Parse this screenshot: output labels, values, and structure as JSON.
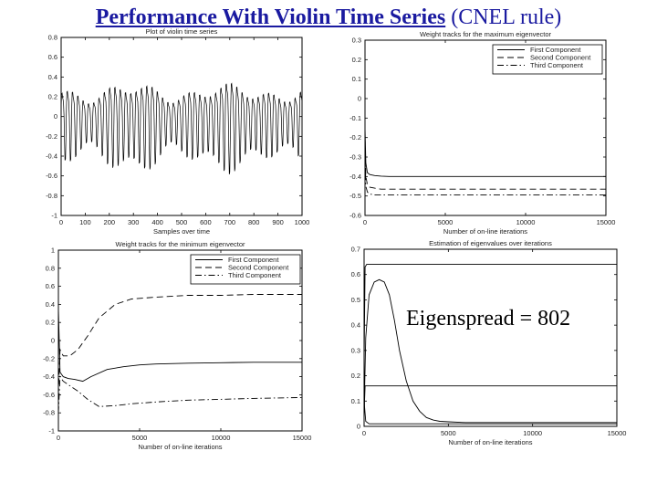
{
  "slide": {
    "title_bold": "Performance With Violin Time Series",
    "title_rest": " (CNEL rule)",
    "annotation": "Eigenspread = 802"
  },
  "chart_data": [
    {
      "type": "line",
      "title": "Plot of violin time series",
      "xlabel": "Samples over time",
      "ylabel": "",
      "xlim": [
        0,
        1000
      ],
      "ylim": [
        -1,
        0.8
      ],
      "xticks": [
        0,
        100,
        200,
        300,
        400,
        500,
        600,
        700,
        800,
        900,
        1000
      ],
      "yticks": [
        -1,
        -0.8,
        -0.6,
        -0.4,
        -0.2,
        0,
        0.2,
        0.4,
        0.6,
        0.8
      ],
      "xtick_labels": [
        "0",
        "100",
        "200",
        "300",
        "400",
        "500",
        "600",
        "700",
        "800",
        "900",
        "1000"
      ],
      "ytick_labels": [
        "-1",
        "-0.8",
        "-0.6",
        "-0.4",
        "-0.2",
        "0",
        "0.2",
        "0.4",
        "0.6",
        "0.8"
      ],
      "series": [
        {
          "values_note": "",
          "approx_period_samples": 22,
          "approx_amplitude": 0.6,
          "approx_offset": -0.02
        }
      ],
      "legend": []
    },
    {
      "type": "line",
      "title": "Weight tracks for the maximum eigenvector",
      "xlabel": "Number of on-line iterations",
      "ylabel": "",
      "xlim": [
        0,
        15000
      ],
      "ylim": [
        -0.6,
        0.3
      ],
      "xticks": [
        0,
        5000,
        10000,
        15000
      ],
      "yticks": [
        -0.6,
        -0.5,
        -0.4,
        -0.3,
        -0.2,
        -0.1,
        0,
        0.1,
        0.2,
        0.3
      ],
      "xtick_labels": [
        "0",
        "5000",
        "10000",
        "15000"
      ],
      "ytick_labels": [
        "-0.6",
        "-0.5",
        "-0.4",
        "-0.3",
        "-0.2",
        "-0.1",
        "0",
        "0.1",
        "0.2",
        "0.3"
      ],
      "legend_position": "top-right",
      "series": [
        {
          "name": "First Component",
          "style": "solid",
          "x": [
            0,
            50,
            150,
            300,
            600,
            1000,
            1500,
            15000
          ],
          "y": [
            -0.15,
            -0.33,
            -0.38,
            -0.39,
            -0.395,
            -0.398,
            -0.4,
            -0.4
          ]
        },
        {
          "name": "Second Component",
          "style": "dashed",
          "x": [
            0,
            50,
            150,
            300,
            600,
            1000,
            15000
          ],
          "y": [
            -0.2,
            -0.4,
            -0.44,
            -0.455,
            -0.46,
            -0.465,
            -0.465
          ]
        },
        {
          "name": "Third Component",
          "style": "dashdot",
          "x": [
            0,
            50,
            150,
            300,
            600,
            1000,
            15000
          ],
          "y": [
            -0.25,
            -0.45,
            -0.48,
            -0.49,
            -0.495,
            -0.495,
            -0.495
          ]
        }
      ]
    },
    {
      "type": "line",
      "title": "Weight tracks for the minimum eigenvector",
      "xlabel": "Number of on-line iterations",
      "ylabel": "",
      "xlim": [
        0,
        15000
      ],
      "ylim": [
        -1,
        1
      ],
      "xticks": [
        0,
        5000,
        10000,
        15000
      ],
      "yticks": [
        -1,
        -0.8,
        -0.6,
        -0.4,
        -0.2,
        0,
        0.2,
        0.4,
        0.6,
        0.8,
        1
      ],
      "xtick_labels": [
        "0",
        "5000",
        "10000",
        "15000"
      ],
      "ytick_labels": [
        "-1",
        "-0.8",
        "-0.6",
        "-0.4",
        "-0.2",
        "0",
        "0.2",
        "0.4",
        "0.6",
        "0.8",
        "1"
      ],
      "legend_position": "top-right",
      "series": [
        {
          "name": "First Component",
          "style": "solid",
          "x": [
            0,
            100,
            300,
            600,
            1000,
            1500,
            2000,
            3000,
            4000,
            5000,
            6000,
            8000,
            10000,
            12000,
            15000
          ],
          "y": [
            0.35,
            -0.35,
            -0.4,
            -0.42,
            -0.43,
            -0.45,
            -0.4,
            -0.32,
            -0.29,
            -0.27,
            -0.26,
            -0.25,
            -0.245,
            -0.24,
            -0.24
          ]
        },
        {
          "name": "Second Component",
          "style": "dashed",
          "x": [
            0,
            100,
            300,
            700,
            1200,
            1800,
            2500,
            3500,
            4500,
            6000,
            8000,
            10000,
            12000,
            15000
          ],
          "y": [
            -0.6,
            -0.1,
            -0.17,
            -0.17,
            -0.1,
            0.05,
            0.25,
            0.4,
            0.46,
            0.48,
            0.5,
            0.5,
            0.51,
            0.51
          ]
        },
        {
          "name": "Third Component",
          "style": "dashdot",
          "x": [
            0,
            100,
            300,
            700,
            1200,
            1800,
            2500,
            3500,
            4500,
            6000,
            8000,
            10000,
            12000,
            15000
          ],
          "y": [
            -0.8,
            -0.4,
            -0.45,
            -0.5,
            -0.56,
            -0.65,
            -0.73,
            -0.72,
            -0.7,
            -0.68,
            -0.66,
            -0.65,
            -0.64,
            -0.63
          ]
        }
      ]
    },
    {
      "type": "line",
      "title": "Estimation of eigenvalues over iterations",
      "xlabel": "Number of on-line iterations",
      "ylabel": "",
      "xlim": [
        0,
        15000
      ],
      "ylim": [
        0,
        0.7
      ],
      "xticks": [
        0,
        5000,
        10000,
        15000
      ],
      "yticks": [
        0,
        0.1,
        0.2,
        0.3,
        0.4,
        0.5,
        0.6,
        0.7
      ],
      "xtick_labels": [
        "0",
        "5000",
        "10000",
        "15000"
      ],
      "ytick_labels": [
        "0",
        "0.1",
        "0.2",
        "0.3",
        "0.4",
        "0.5",
        "0.6",
        "0.7"
      ],
      "series": [
        {
          "style": "solid",
          "x": [
            0,
            60,
            150,
            15000
          ],
          "y": [
            0.25,
            0.63,
            0.64,
            0.64
          ]
        },
        {
          "style": "solid",
          "x": [
            0,
            60,
            150,
            15000
          ],
          "y": [
            0.05,
            0.16,
            0.16,
            0.16
          ]
        },
        {
          "style": "solid",
          "x": [
            0,
            100,
            300,
            600,
            900,
            1200,
            1500,
            1800,
            2100,
            2500,
            2900,
            3300,
            3700,
            4100,
            4500,
            5000,
            6000,
            15000
          ],
          "y": [
            0.05,
            0.35,
            0.52,
            0.57,
            0.58,
            0.57,
            0.52,
            0.42,
            0.3,
            0.18,
            0.1,
            0.06,
            0.035,
            0.025,
            0.02,
            0.018,
            0.015,
            0.015
          ]
        },
        {
          "style": "solid",
          "x": [
            0,
            100,
            300,
            15000
          ],
          "y": [
            0.1,
            0.02,
            0.01,
            0.01
          ]
        }
      ]
    }
  ]
}
